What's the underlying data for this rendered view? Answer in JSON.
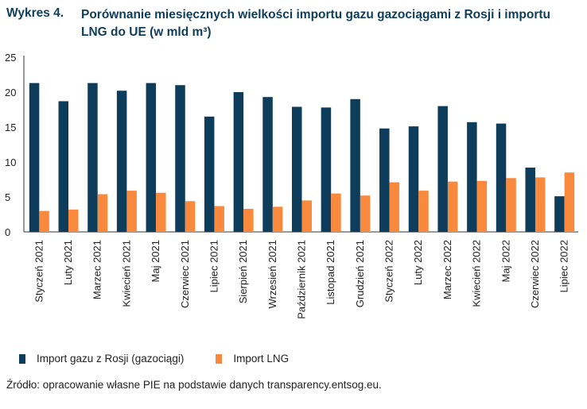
{
  "figure": {
    "label": "Wykres 4.",
    "title": "Porównanie miesięcznych wielkości importu gazu gazociągami z Rosji i importu LNG do UE (w mld m³)",
    "source": "Źródło: opracowanie własne PIE na podstawie danych transparency.entsog.eu."
  },
  "chart_data": {
    "type": "bar",
    "title": "Porównanie miesięcznych wielkości importu gazu gazociągami z Rosji i importu LNG do UE (w mld m³)",
    "xlabel": "",
    "ylabel": "",
    "ylim": [
      0,
      25
    ],
    "yticks": [
      0,
      5,
      10,
      15,
      20,
      25
    ],
    "grid": false,
    "legend_position": "bottom-left",
    "categories": [
      "Styczeń 2021",
      "Luty 2021",
      "Marzec 2021",
      "Kwiecień 2021",
      "Maj 2021",
      "Czerwiec 2021",
      "Lipiec 2021",
      "Sierpień 2021",
      "Wrzesień 2021",
      "Październik 2021",
      "Listopad 2021",
      "Grudzień 2021",
      "Styczeń 2022",
      "Luty 2022",
      "Marzec 2022",
      "Kwiecień 2022",
      "Maj 2022",
      "Czerwiec 2022",
      "Lipiec 2022"
    ],
    "series": [
      {
        "name": "Import gazu z Rosji (gazociągi)",
        "color": "#0e3d5c",
        "values": [
          21.3,
          18.7,
          21.3,
          20.2,
          21.3,
          21.0,
          16.5,
          20.0,
          19.3,
          17.9,
          17.8,
          19.0,
          14.8,
          15.1,
          18.0,
          15.7,
          15.5,
          9.2,
          5.1
        ]
      },
      {
        "name": "Import LNG",
        "color": "#f98a3d",
        "values": [
          3.0,
          3.2,
          5.4,
          5.9,
          5.6,
          4.4,
          3.7,
          3.3,
          3.6,
          4.5,
          5.5,
          5.2,
          7.1,
          5.9,
          7.2,
          7.3,
          7.7,
          7.8,
          8.5
        ]
      }
    ]
  }
}
